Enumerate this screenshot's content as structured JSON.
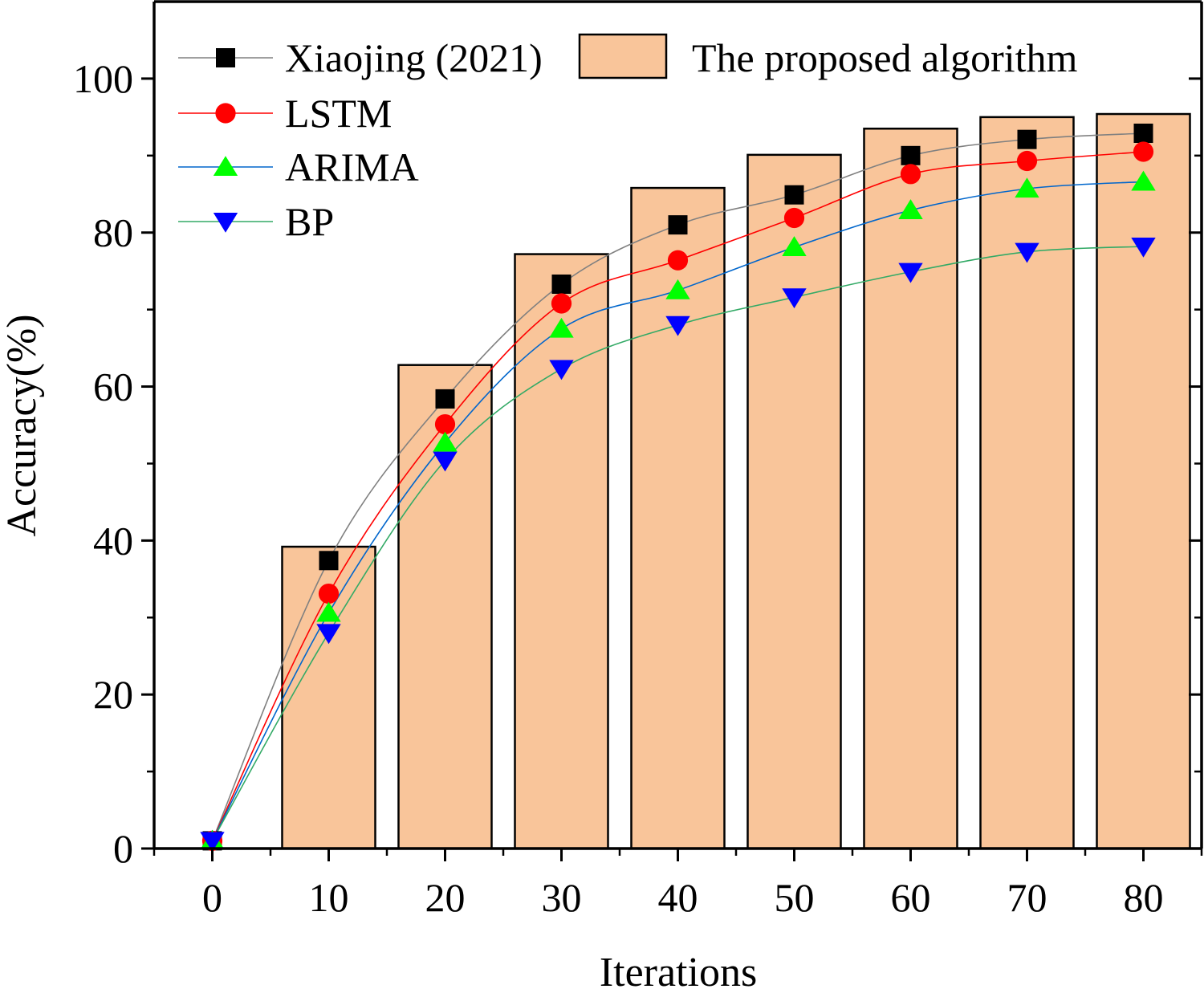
{
  "chart_data": {
    "type": "bar",
    "xlabel": "Iterations",
    "ylabel": "Accuracy(%)",
    "xlim": [
      -5,
      85
    ],
    "ylim": [
      0,
      110
    ],
    "x_ticks": [
      0,
      10,
      20,
      30,
      40,
      50,
      60,
      70,
      80
    ],
    "y_ticks": [
      0,
      20,
      40,
      60,
      80,
      100
    ],
    "legend_position": "top",
    "bar_series": {
      "name": "The proposed algorithm",
      "color": "#f9c59a",
      "x": [
        10,
        20,
        30,
        40,
        50,
        60,
        70,
        80
      ],
      "values": [
        39.2,
        62.8,
        77.2,
        85.8,
        90.1,
        93.5,
        95.0,
        95.4
      ]
    },
    "line_series": [
      {
        "name": "Xiaojing (2021)",
        "marker": "square",
        "marker_color": "#000000",
        "line_color": "#808080",
        "x": [
          0,
          10,
          20,
          30,
          40,
          50,
          60,
          70,
          80
        ],
        "values": [
          1.0,
          37.4,
          58.4,
          73.3,
          81.0,
          84.9,
          90.0,
          92.1,
          92.9
        ]
      },
      {
        "name": "LSTM",
        "marker": "circle",
        "marker_color": "#ff0000",
        "line_color": "#ff0000",
        "x": [
          0,
          10,
          20,
          30,
          40,
          50,
          60,
          70,
          80
        ],
        "values": [
          1.0,
          33.1,
          55.1,
          70.8,
          76.4,
          81.9,
          87.6,
          89.3,
          90.5
        ]
      },
      {
        "name": "ARIMA",
        "marker": "triangle-up",
        "marker_color": "#00ff00",
        "line_color": "#0066cc",
        "x": [
          0,
          10,
          20,
          30,
          40,
          50,
          60,
          70,
          80
        ],
        "values": [
          1.0,
          30.6,
          52.7,
          67.5,
          72.5,
          78.1,
          82.9,
          85.7,
          86.6
        ]
      },
      {
        "name": "BP",
        "marker": "triangle-down",
        "marker_color": "#0000ff",
        "line_color": "#33aa66",
        "x": [
          0,
          10,
          20,
          30,
          40,
          50,
          60,
          70,
          80
        ],
        "values": [
          1.0,
          28.0,
          50.4,
          62.3,
          68.0,
          71.6,
          74.9,
          77.5,
          78.2
        ]
      }
    ]
  }
}
